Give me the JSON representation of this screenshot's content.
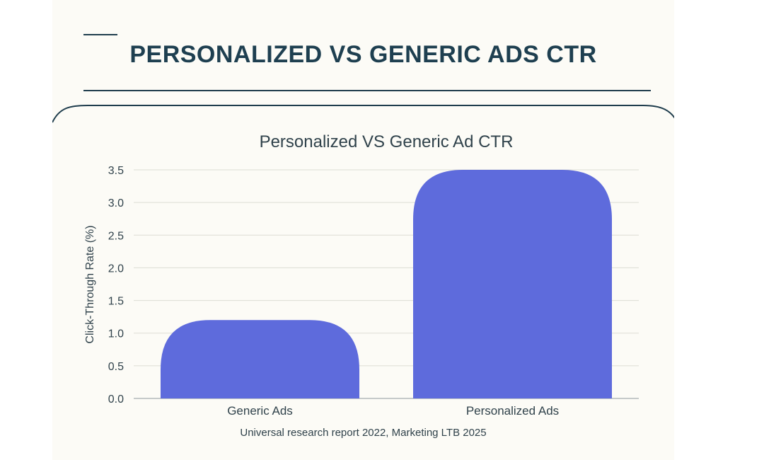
{
  "header": {
    "title": "PERSONALIZED VS GENERIC ADS CTR"
  },
  "colors": {
    "title": "#1e3f50",
    "bar": "#5e6bdc",
    "grid": "#dddcd4",
    "text": "#30424b"
  },
  "chart_data": {
    "type": "bar",
    "title": "Personalized VS Generic Ad CTR",
    "categories": [
      "Generic Ads",
      "Personalized Ads"
    ],
    "values": [
      1.2,
      3.5
    ],
    "xlabel": "",
    "ylabel": "Click-Through Rate (%)",
    "ylim": [
      0,
      3.5
    ],
    "yticks": [
      "0.0",
      "0.5",
      "1.0",
      "1.5",
      "2.0",
      "2.5",
      "3.0",
      "3.5"
    ],
    "grid": true,
    "legend": "none"
  },
  "footer": {
    "source": "Universal research report 2022, Marketing LTB 2025"
  }
}
